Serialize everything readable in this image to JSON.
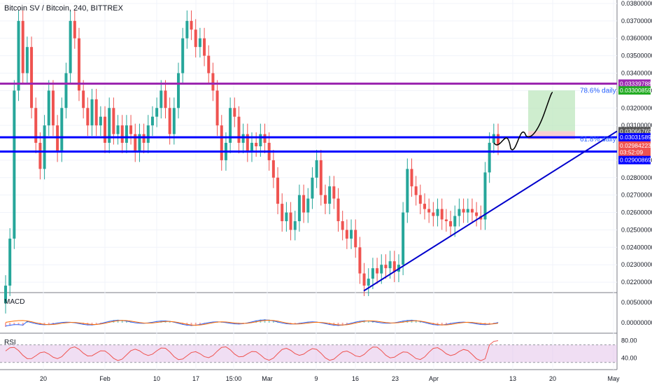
{
  "header": {
    "title": "Bitcoin SV / Bitcoin, 240, BITTREX"
  },
  "panes": {
    "macd_label": "MACD",
    "rsi_label": "RSI"
  },
  "colors": {
    "bull": "#26a69a",
    "bear": "#ef5350",
    "hline_blue": "#0000ff",
    "hline_purple": "#9c27b0",
    "trend": "#0000cc",
    "macd": "#2962ff",
    "signal": "#ff6d00",
    "rsi": "#ef5350",
    "rsi_band": "#e1bee7"
  },
  "chart_data": {
    "type": "candlestick",
    "price_axis": {
      "ticks": [
        "0.03800000",
        "0.03700000",
        "0.03600000",
        "0.03500000",
        "0.03400000",
        "0.03300000",
        "0.03200000",
        "0.03100000",
        "0.02900000",
        "0.02800000",
        "0.02700000",
        "0.02600000",
        "0.02500000",
        "0.02400000",
        "0.02300000",
        "0.02200000"
      ],
      "range": [
        0.0214,
        0.0382
      ]
    },
    "time_axis": {
      "ticks": [
        "20",
        "Feb",
        "10",
        "17",
        "15:00",
        "Mar",
        "9",
        "16",
        "23",
        "Apr",
        "13",
        "20",
        "May"
      ]
    },
    "price_labels": [
      {
        "text": "0.03339788",
        "color": "#9c27b0",
        "price": 0.03339788
      },
      {
        "text": "0.03300859",
        "color": "#22ab22",
        "price": 0.03300859
      },
      {
        "text": "0.03066765",
        "color": "#555555",
        "price": 0.03066765
      },
      {
        "text": "0.03031589",
        "color": "#0000ff",
        "price": 0.03031589
      },
      {
        "text": "0.02984223",
        "color": "#ef5350",
        "price": 0.02984223
      },
      {
        "text": "03:52:09",
        "color": "#ef5350",
        "price": 0.02945
      },
      {
        "text": "0.02900869",
        "color": "#0000ff",
        "price": 0.02900869
      }
    ],
    "horizontal_lines": [
      {
        "price": 0.03339788,
        "color": "#9c27b0"
      },
      {
        "price": 0.03031589,
        "color": "#0000ff"
      },
      {
        "price": 0.0295,
        "color": "#0000ff"
      }
    ],
    "fib_labels": [
      {
        "text": "78.6% daily",
        "price": 0.033
      },
      {
        "text": "61.8% daily",
        "price": 0.0302
      }
    ],
    "projection_box": {
      "entry": 0.03066765,
      "target": 0.03300859,
      "stop": 0.0302
    },
    "trendline": {
      "from_price": 0.0215,
      "to_price": 0.03066765
    },
    "candle_closes": [
      0.0218,
      0.0245,
      0.033,
      0.037,
      0.034,
      0.0355,
      0.032,
      0.03,
      0.0285,
      0.031,
      0.033,
      0.031,
      0.0295,
      0.032,
      0.034,
      0.037,
      0.036,
      0.033,
      0.032,
      0.031,
      0.0325,
      0.031,
      0.0315,
      0.03,
      0.032,
      0.0305,
      0.031,
      0.03,
      0.031,
      0.0305,
      0.0295,
      0.0305,
      0.03,
      0.031,
      0.0315,
      0.032,
      0.033,
      0.032,
      0.0305,
      0.032,
      0.034,
      0.036,
      0.037,
      0.0365,
      0.0355,
      0.036,
      0.035,
      0.034,
      0.033,
      0.031,
      0.029,
      0.03,
      0.032,
      0.0315,
      0.03,
      0.0305,
      0.0295,
      0.03,
      0.0298,
      0.0305,
      0.03,
      0.029,
      0.028,
      0.0265,
      0.0255,
      0.026,
      0.025,
      0.0255,
      0.027,
      0.026,
      0.0268,
      0.028,
      0.029,
      0.027,
      0.0265,
      0.0275,
      0.0268,
      0.0255,
      0.025,
      0.0245,
      0.025,
      0.024,
      0.0225,
      0.0218,
      0.0222,
      0.0228,
      0.0225,
      0.023,
      0.0228,
      0.0232,
      0.0226,
      0.023,
      0.026,
      0.0285,
      0.0275,
      0.027,
      0.0265,
      0.0262,
      0.026,
      0.0258,
      0.0262,
      0.0256,
      0.0255,
      0.0252,
      0.0258,
      0.0262,
      0.026,
      0.0262,
      0.026,
      0.0258,
      0.0256,
      0.0283,
      0.03,
      0.0305,
      0.0299
    ],
    "macd_axis": {
      "ticks": [
        "0.00500000",
        "0.00000000"
      ]
    },
    "rsi_axis": {
      "ticks": [
        "80.00",
        "40.00"
      ]
    }
  }
}
